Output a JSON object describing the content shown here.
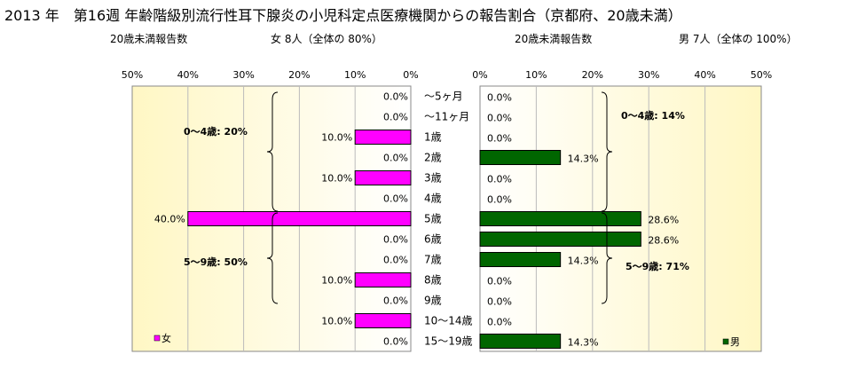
{
  "title": "2013 年　第16週 年齢階級別流行性耳下腺炎の小児科定点医療機関からの報告割合（京都府、20歳未満）",
  "left_header": {
    "label": "20歳未満報告数",
    "count": "女  8人（全体の  80%）"
  },
  "right_header": {
    "label": "20歳未満報告数",
    "count": "男  7人（全体の  100%）"
  },
  "chart_data": [
    {
      "type": "bar",
      "orientation": "horizontal",
      "direction": "right-to-left",
      "categories": [
        "～5ヶ月",
        "～11ヶ月",
        "1歳",
        "2歳",
        "3歳",
        "4歳",
        "5歳",
        "6歳",
        "7歳",
        "8歳",
        "9歳",
        "10～14歳",
        "15～19歳"
      ],
      "series": [
        {
          "name": "女",
          "values": [
            0,
            0,
            10,
            0,
            10,
            0,
            40,
            0,
            0,
            10,
            0,
            10,
            0
          ],
          "color": "#ff00ff"
        }
      ],
      "data_labels": [
        "0.0%",
        "0.0%",
        "10.0%",
        "0.0%",
        "10.0%",
        "0.0%",
        "40.0%",
        "0.0%",
        "0.0%",
        "10.0%",
        "0.0%",
        "10.0%",
        "0.0%"
      ],
      "xlim": [
        0,
        50
      ],
      "ticks": [
        "50%",
        "40%",
        "30%",
        "20%",
        "10%",
        "0%"
      ],
      "legend": "bottom-left",
      "annotations": [
        "0～4歳: 20%",
        "5～9歳: 50%"
      ],
      "grid": true
    },
    {
      "type": "bar",
      "orientation": "horizontal",
      "categories": [
        "～5ヶ月",
        "～11ヶ月",
        "1歳",
        "2歳",
        "3歳",
        "4歳",
        "5歳",
        "6歳",
        "7歳",
        "8歳",
        "9歳",
        "10～14歳",
        "15～19歳"
      ],
      "series": [
        {
          "name": "男",
          "values": [
            0,
            0,
            0,
            14.3,
            0,
            0,
            28.6,
            28.6,
            14.3,
            0,
            0,
            0,
            14.3
          ],
          "color": "#006600"
        }
      ],
      "data_labels": [
        "0.0%",
        "0.0%",
        "0.0%",
        "14.3%",
        "0.0%",
        "0.0%",
        "28.6%",
        "28.6%",
        "14.3%",
        "0.0%",
        "0.0%",
        "0.0%",
        "14.3%"
      ],
      "xlim": [
        0,
        50
      ],
      "ticks": [
        "0%",
        "10%",
        "20%",
        "30%",
        "40%",
        "50%"
      ],
      "legend": "bottom-right",
      "annotations": [
        "0～4歳: 14%",
        "5～9歳: 71%"
      ],
      "grid": true
    }
  ]
}
